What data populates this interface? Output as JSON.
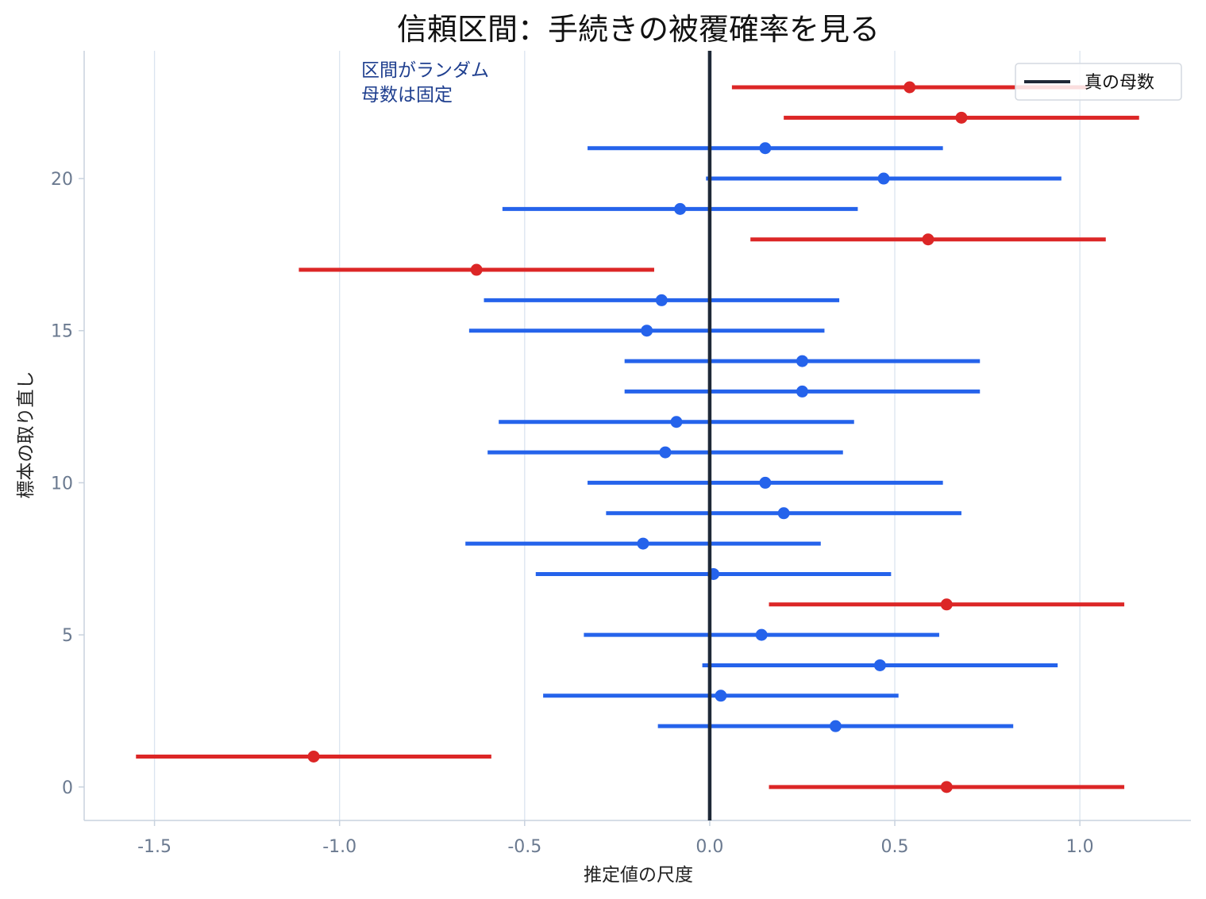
{
  "chart_data": {
    "type": "errorbar",
    "title": "信頼区間：手続きの被覆確率を見る",
    "xlabel": "推定値の尺度",
    "ylabel": "標本の取り直し",
    "xlim": [
      -1.69,
      1.3
    ],
    "ylim": [
      -1.1,
      24.2
    ],
    "x_ticks": [
      -1.5,
      -1.0,
      -0.5,
      0.0,
      0.5,
      1.0
    ],
    "x_tick_labels": [
      "-1.5",
      "-1.0",
      "-0.5",
      "0.0",
      "0.5",
      "1.0"
    ],
    "y_ticks": [
      0,
      5,
      10,
      15,
      20
    ],
    "y_tick_labels": [
      "0",
      "5",
      "10",
      "15",
      "20"
    ],
    "grid": "vertical",
    "true_parameter": 0.0,
    "annotation": [
      "区間がランダム",
      "母数は固定"
    ],
    "legend": {
      "position": "top-right",
      "entries": [
        "真の母数"
      ]
    },
    "colors": {
      "covers": "#2563eb",
      "misses": "#dc2626",
      "true_line": "#1f2937",
      "grid": "#dbe4ef",
      "axis": "#c8d2de"
    },
    "intervals": [
      {
        "sample": 0,
        "estimate": 0.64,
        "low": 0.16,
        "high": 1.12,
        "covers": false
      },
      {
        "sample": 1,
        "estimate": -1.07,
        "low": -1.55,
        "high": -0.59,
        "covers": false
      },
      {
        "sample": 2,
        "estimate": 0.34,
        "low": -0.14,
        "high": 0.82,
        "covers": true
      },
      {
        "sample": 3,
        "estimate": 0.03,
        "low": -0.45,
        "high": 0.51,
        "covers": true
      },
      {
        "sample": 4,
        "estimate": 0.46,
        "low": -0.02,
        "high": 0.94,
        "covers": true
      },
      {
        "sample": 5,
        "estimate": 0.14,
        "low": -0.34,
        "high": 0.62,
        "covers": true
      },
      {
        "sample": 6,
        "estimate": 0.64,
        "low": 0.16,
        "high": 1.12,
        "covers": false
      },
      {
        "sample": 7,
        "estimate": 0.01,
        "low": -0.47,
        "high": 0.49,
        "covers": true
      },
      {
        "sample": 8,
        "estimate": -0.18,
        "low": -0.66,
        "high": 0.3,
        "covers": true
      },
      {
        "sample": 9,
        "estimate": 0.2,
        "low": -0.28,
        "high": 0.68,
        "covers": true
      },
      {
        "sample": 10,
        "estimate": 0.15,
        "low": -0.33,
        "high": 0.63,
        "covers": true
      },
      {
        "sample": 11,
        "estimate": -0.12,
        "low": -0.6,
        "high": 0.36,
        "covers": true
      },
      {
        "sample": 12,
        "estimate": -0.09,
        "low": -0.57,
        "high": 0.39,
        "covers": true
      },
      {
        "sample": 13,
        "estimate": 0.25,
        "low": -0.23,
        "high": 0.73,
        "covers": true
      },
      {
        "sample": 14,
        "estimate": 0.25,
        "low": -0.23,
        "high": 0.73,
        "covers": true
      },
      {
        "sample": 15,
        "estimate": -0.17,
        "low": -0.65,
        "high": 0.31,
        "covers": true
      },
      {
        "sample": 16,
        "estimate": -0.13,
        "low": -0.61,
        "high": 0.35,
        "covers": true
      },
      {
        "sample": 17,
        "estimate": -0.63,
        "low": -1.11,
        "high": -0.15,
        "covers": false
      },
      {
        "sample": 18,
        "estimate": 0.59,
        "low": 0.11,
        "high": 1.07,
        "covers": false
      },
      {
        "sample": 19,
        "estimate": -0.08,
        "low": -0.56,
        "high": 0.4,
        "covers": true
      },
      {
        "sample": 20,
        "estimate": 0.47,
        "low": -0.01,
        "high": 0.95,
        "covers": true
      },
      {
        "sample": 21,
        "estimate": 0.15,
        "low": -0.33,
        "high": 0.63,
        "covers": true
      },
      {
        "sample": 22,
        "estimate": 0.68,
        "low": 0.2,
        "high": 1.16,
        "covers": false
      },
      {
        "sample": 23,
        "estimate": 0.54,
        "low": 0.06,
        "high": 1.02,
        "covers": false
      }
    ]
  }
}
